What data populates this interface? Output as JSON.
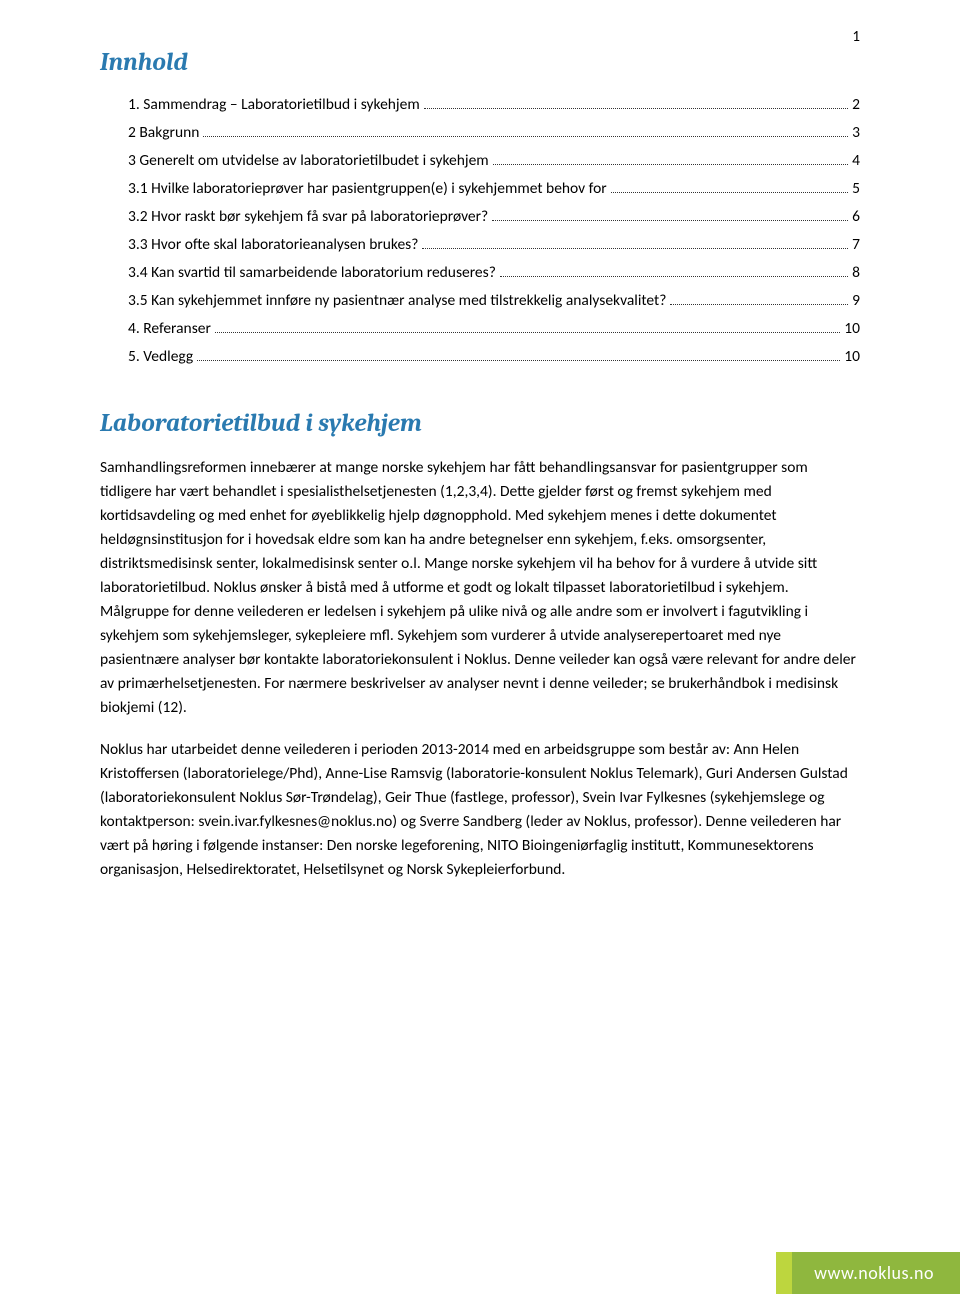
{
  "page_number": "1",
  "toc": {
    "title": "Innhold",
    "entries": [
      {
        "label": "1. Sammendrag – Laboratorietilbud i sykehjem",
        "page": "2"
      },
      {
        "label": "2 Bakgrunn",
        "page": "3"
      },
      {
        "label": "3 Generelt om utvidelse av laboratorietilbudet i sykehjem",
        "page": "4"
      },
      {
        "label": "3.1 Hvilke laboratorieprøver har pasientgruppen(e) i sykehjemmet behov for",
        "page": "5"
      },
      {
        "label": "3.2 Hvor raskt bør sykehjem få svar på laboratorieprøver?",
        "page": "6"
      },
      {
        "label": "3.3 Hvor ofte skal laboratorieanalysen brukes?",
        "page": "7"
      },
      {
        "label": "3.4 Kan svartid til samarbeidende laboratorium reduseres?",
        "page": "8"
      },
      {
        "label": "3.5 Kan sykehjemmet innføre ny pasientnær analyse med tilstrekkelig analysekvalitet?",
        "page": "9"
      },
      {
        "label": "4.   Referanser",
        "page": "10"
      },
      {
        "label": "5.   Vedlegg",
        "page": "10"
      }
    ]
  },
  "section_title": "Laboratorietilbud i sykehjem",
  "paragraphs": [
    "Samhandlingsreformen innebærer at mange norske sykehjem har fått behandlingsansvar for pasientgrupper som tidligere har vært behandlet i spesialisthelsetjenesten (1,2,3,4). Dette gjelder først og fremst sykehjem med kortidsavdeling og med enhet for øyeblikkelig hjelp døgnopphold. Med sykehjem menes i dette dokumentet heldøgnsinstitusjon for i hovedsak eldre som kan ha andre betegnelser enn sykehjem, f.eks. omsorgsenter, distriktsmedisinsk senter, lokalmedisinsk senter o.l. Mange norske sykehjem vil ha behov for å vurdere å utvide sitt laboratorietilbud. Noklus ønsker å bistå med å utforme et godt og lokalt tilpasset laboratorietilbud i sykehjem. Målgruppe for denne veilederen er ledelsen i sykehjem på ulike nivå og alle andre som er involvert i fagutvikling i sykehjem som sykehjemsleger, sykepleiere mfl. Sykehjem som vurderer å utvide analyserepertoaret med nye pasientnære analyser bør kontakte laboratoriekonsulent i Noklus. Denne veileder kan også være relevant for andre deler av primærhelsetjenesten. For nærmere beskrivelser av analyser nevnt i denne veileder; se brukerhåndbok i medisinsk biokjemi (12).",
    "Noklus har utarbeidet denne veilederen i perioden 2013-2014 med en arbeidsgruppe som består av: Ann Helen Kristoffersen (laboratorielege/Phd), Anne-Lise Ramsvig (laboratorie-konsulent Noklus Telemark), Guri Andersen Gulstad (laboratoriekonsulent Noklus Sør-Trøndelag), Geir Thue (fastlege, professor), Svein Ivar Fylkesnes (sykehjemslege og kontaktperson: svein.ivar.fylkesnes@noklus.no) og Sverre Sandberg (leder av Noklus, professor).  Denne veilederen har vært på høring i følgende instanser: Den norske legeforening, NITO Bioingeniørfaglig institutt, Kommunesektorens organisasjon, Helsedirektoratet, Helsetilsynet og Norsk Sykepleierforbund."
  ],
  "footer": {
    "url": "www.noklus.no",
    "accent_color": "#bdd63e",
    "main_color": "#8fb73e",
    "text_color": "#ffffff"
  },
  "colors": {
    "heading": "#2a7ab0",
    "body_text": "#000000",
    "background": "#ffffff"
  }
}
